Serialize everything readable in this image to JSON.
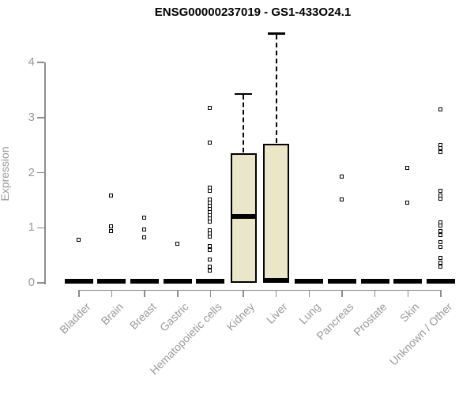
{
  "chart_data": {
    "type": "boxplot",
    "title": "ENSG00000237019 - GS1-433O24.1",
    "ylabel": "Expression",
    "xlabel": "",
    "ylim": [
      0,
      4.6
    ],
    "yticks": [
      "0",
      "1",
      "2",
      "3",
      "4"
    ],
    "grid": false,
    "legend": "none",
    "box_fill_color": "#ECE6C8",
    "box_border_color": "#000000",
    "axis_color": "#8c8c8c",
    "label_color": "#999999",
    "categories": [
      "Bladder",
      "Brain",
      "Breast",
      "Gastric",
      "Hematopoietic cells",
      "Kidney",
      "Liver",
      "Lung",
      "Pancreas",
      "Prostate",
      "Skin",
      "Unknown / Other"
    ],
    "series": [
      {
        "category": "Bladder",
        "q1": 0,
        "median": 0,
        "q3": 0,
        "whisker_low": 0,
        "whisker_high": 0,
        "points": [
          0.77
        ]
      },
      {
        "category": "Brain",
        "q1": 0,
        "median": 0,
        "q3": 0,
        "whisker_low": 0,
        "whisker_high": 0,
        "points": [
          1.57,
          1.02,
          0.93
        ]
      },
      {
        "category": "Breast",
        "q1": 0,
        "median": 0,
        "q3": 0,
        "whisker_low": 0,
        "whisker_high": 0,
        "points": [
          1.18,
          0.96,
          0.82
        ]
      },
      {
        "category": "Gastric",
        "q1": 0,
        "median": 0,
        "q3": 0,
        "whisker_low": 0,
        "whisker_high": 0,
        "points": [
          0.7
        ]
      },
      {
        "category": "Hematopoietic cells",
        "q1": 0,
        "median": 0,
        "q3": 0,
        "whisker_low": 0,
        "whisker_high": 0,
        "points": [
          3.17,
          2.54,
          1.72,
          1.66,
          1.51,
          1.45,
          1.39,
          1.33,
          1.28,
          1.22,
          1.16,
          1.1,
          0.95,
          0.89,
          0.83,
          0.66,
          0.59,
          0.41,
          0.28,
          0.21
        ]
      },
      {
        "category": "Kidney",
        "q1": 0,
        "median": 1.21,
        "q3": 2.35,
        "whisker_low": 0,
        "whisker_high": 3.43,
        "points": []
      },
      {
        "category": "Liver",
        "q1": 0,
        "median": 0,
        "q3": 2.52,
        "whisker_low": 0,
        "whisker_high": 4.52,
        "points": []
      },
      {
        "category": "Lung",
        "q1": 0,
        "median": 0,
        "q3": 0,
        "whisker_low": 0,
        "whisker_high": 0,
        "points": []
      },
      {
        "category": "Pancreas",
        "q1": 0,
        "median": 0,
        "q3": 0,
        "whisker_low": 0,
        "whisker_high": 0,
        "points": [
          1.92,
          1.51
        ]
      },
      {
        "category": "Prostate",
        "q1": 0,
        "median": 0,
        "q3": 0,
        "whisker_low": 0,
        "whisker_high": 0,
        "points": []
      },
      {
        "category": "Skin",
        "q1": 0,
        "median": 0,
        "q3": 0,
        "whisker_low": 0,
        "whisker_high": 0,
        "points": [
          2.08,
          1.45
        ]
      },
      {
        "category": "Unknown / Other",
        "q1": 0,
        "median": 0,
        "q3": 0,
        "whisker_low": 0,
        "whisker_high": 0,
        "points": [
          3.14,
          2.5,
          2.44,
          2.37,
          1.66,
          1.57,
          1.52,
          1.09,
          1.03,
          0.93,
          0.86,
          0.73,
          0.65,
          0.44,
          0.36,
          0.29
        ]
      }
    ]
  }
}
